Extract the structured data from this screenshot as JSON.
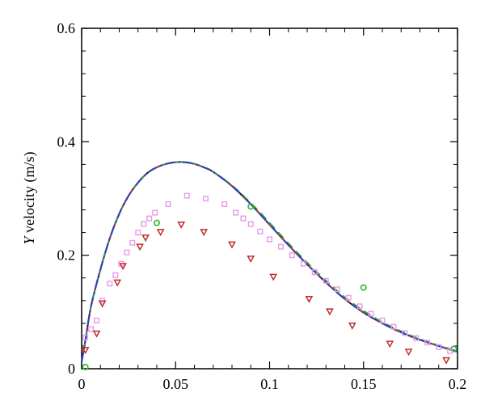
{
  "chart_data": {
    "type": "line",
    "title": "",
    "xlabel": "",
    "ylabel_italic": "Y",
    "ylabel_rest": " velocity (m/s)",
    "xlim": [
      0,
      0.2
    ],
    "ylim": [
      0,
      0.6
    ],
    "x_ticks": [
      0,
      0.05,
      0.1,
      0.15,
      0.2
    ],
    "x_tick_labels": [
      "0",
      "0.05",
      "0.1",
      "0.15",
      "0.2"
    ],
    "y_ticks": [
      0,
      0.2,
      0.4,
      0.6
    ],
    "y_tick_labels": [
      "0",
      "0.2",
      "0.4",
      "0.6"
    ],
    "grid": false,
    "legend": "none",
    "series": [
      {
        "style": "line",
        "color": "#1a1a1a",
        "dash": "none",
        "x": [
          0,
          0.002,
          0.005,
          0.01,
          0.015,
          0.02,
          0.025,
          0.03,
          0.035,
          0.04,
          0.045,
          0.05,
          0.055,
          0.06,
          0.065,
          0.07,
          0.08,
          0.09,
          0.1,
          0.11,
          0.12,
          0.13,
          0.14,
          0.15,
          0.16,
          0.17,
          0.18,
          0.19,
          0.2
        ],
        "values": [
          0.012,
          0.05,
          0.11,
          0.175,
          0.23,
          0.273,
          0.305,
          0.328,
          0.345,
          0.355,
          0.361,
          0.364,
          0.364,
          0.361,
          0.355,
          0.347,
          0.322,
          0.29,
          0.254,
          0.218,
          0.184,
          0.152,
          0.123,
          0.099,
          0.08,
          0.064,
          0.051,
          0.04,
          0.03
        ]
      },
      {
        "style": "line",
        "color": "#c03030",
        "dash": "8,4",
        "x": [
          0,
          0.002,
          0.005,
          0.01,
          0.015,
          0.02,
          0.025,
          0.03,
          0.035,
          0.04,
          0.045,
          0.05,
          0.055,
          0.06,
          0.065,
          0.07,
          0.08,
          0.09,
          0.1,
          0.11,
          0.12,
          0.13,
          0.14,
          0.15,
          0.16,
          0.17,
          0.18,
          0.19,
          0.2
        ],
        "values": [
          0.012,
          0.05,
          0.11,
          0.175,
          0.23,
          0.273,
          0.305,
          0.328,
          0.345,
          0.355,
          0.361,
          0.364,
          0.364,
          0.361,
          0.355,
          0.347,
          0.322,
          0.29,
          0.254,
          0.218,
          0.184,
          0.152,
          0.123,
          0.099,
          0.08,
          0.064,
          0.051,
          0.04,
          0.03
        ]
      },
      {
        "style": "line",
        "color": "#3a9a3a",
        "dash": "10,6",
        "x": [
          0,
          0.002,
          0.005,
          0.01,
          0.015,
          0.02,
          0.025,
          0.03,
          0.035,
          0.04,
          0.045,
          0.05,
          0.055,
          0.06,
          0.065,
          0.07,
          0.08,
          0.09,
          0.1,
          0.11,
          0.12,
          0.13,
          0.14,
          0.15,
          0.16,
          0.17,
          0.18,
          0.19,
          0.2
        ],
        "values": [
          0.012,
          0.05,
          0.11,
          0.175,
          0.23,
          0.273,
          0.305,
          0.328,
          0.345,
          0.355,
          0.361,
          0.364,
          0.364,
          0.361,
          0.355,
          0.347,
          0.323,
          0.292,
          0.257,
          0.221,
          0.187,
          0.155,
          0.126,
          0.102,
          0.082,
          0.066,
          0.052,
          0.041,
          0.031
        ]
      },
      {
        "style": "line",
        "color": "#2b3fc4",
        "dash": "12,4,3,4",
        "x": [
          0,
          0.002,
          0.005,
          0.01,
          0.015,
          0.02,
          0.025,
          0.03,
          0.035,
          0.04,
          0.045,
          0.05,
          0.055,
          0.06,
          0.065,
          0.07,
          0.08,
          0.09,
          0.1,
          0.11,
          0.12,
          0.13,
          0.14,
          0.15,
          0.16,
          0.17,
          0.18,
          0.19,
          0.2
        ],
        "values": [
          0.012,
          0.05,
          0.11,
          0.175,
          0.23,
          0.273,
          0.305,
          0.328,
          0.345,
          0.355,
          0.361,
          0.364,
          0.364,
          0.361,
          0.355,
          0.347,
          0.322,
          0.29,
          0.254,
          0.218,
          0.184,
          0.152,
          0.123,
          0.099,
          0.08,
          0.064,
          0.051,
          0.04,
          0.03
        ]
      },
      {
        "style": "marker",
        "marker": "circle",
        "color": "#2fb62f",
        "x": [
          0.002,
          0.04,
          0.09,
          0.15,
          0.198
        ],
        "values": [
          0.003,
          0.257,
          0.286,
          0.143,
          0.035
        ]
      },
      {
        "style": "marker",
        "marker": "square",
        "color": "#e89ae8",
        "x": [
          0.002,
          0.005,
          0.008,
          0.011,
          0.015,
          0.018,
          0.021,
          0.024,
          0.027,
          0.03,
          0.033,
          0.036,
          0.039,
          0.046,
          0.056,
          0.066,
          0.076,
          0.082,
          0.086,
          0.09,
          0.095,
          0.1,
          0.106,
          0.112,
          0.118,
          0.124,
          0.13,
          0.136,
          0.142,
          0.148,
          0.154,
          0.16,
          0.166,
          0.172,
          0.178,
          0.184,
          0.19,
          0.196
        ],
        "values": [
          0.055,
          0.07,
          0.085,
          0.12,
          0.15,
          0.165,
          0.185,
          0.205,
          0.222,
          0.24,
          0.255,
          0.265,
          0.275,
          0.29,
          0.305,
          0.3,
          0.29,
          0.275,
          0.265,
          0.255,
          0.242,
          0.228,
          0.215,
          0.2,
          0.185,
          0.17,
          0.155,
          0.14,
          0.125,
          0.11,
          0.097,
          0.085,
          0.074,
          0.063,
          0.054,
          0.046,
          0.038,
          0.031
        ]
      },
      {
        "style": "marker",
        "marker": "triangle-down",
        "color": "#c42b2b",
        "x": [
          0.002,
          0.008,
          0.011,
          0.019,
          0.022,
          0.031,
          0.034,
          0.042,
          0.053,
          0.065,
          0.08,
          0.09,
          0.102,
          0.121,
          0.132,
          0.144,
          0.164,
          0.174,
          0.194
        ],
        "values": [
          0.033,
          0.062,
          0.115,
          0.152,
          0.181,
          0.215,
          0.231,
          0.241,
          0.254,
          0.241,
          0.219,
          0.194,
          0.162,
          0.123,
          0.101,
          0.076,
          0.044,
          0.03,
          0.015
        ]
      }
    ]
  }
}
